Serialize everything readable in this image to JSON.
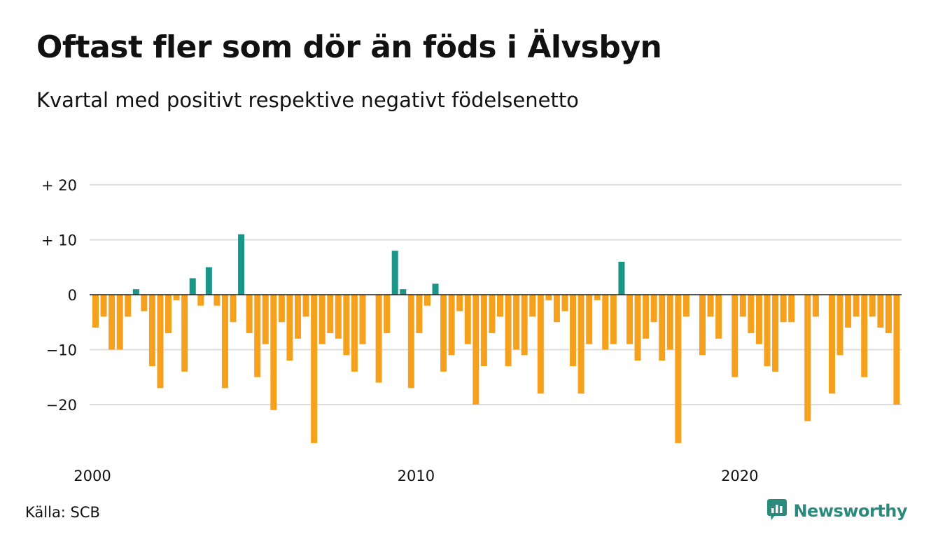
{
  "header": {
    "title": "Oftast fler som dör än föds i Älvsbyn",
    "subtitle": "Kvartal med positivt respektive negativt födelsenetto"
  },
  "footer": {
    "source": "Källa: SCB",
    "brand": "Newsworthy",
    "brand_icon": "newsworthy-logo-icon"
  },
  "colors": {
    "positive": "#1a9588",
    "negative": "#f5a11e",
    "grid": "#dddddd",
    "zero_line": "#222222",
    "brand": "#2a8b7d"
  },
  "chart_data": {
    "type": "bar",
    "title": "Oftast fler som dör än föds i Älvsbyn",
    "subtitle": "Kvartal med positivt respektive negativt födelsenetto",
    "xlabel": "",
    "ylabel": "",
    "ylim": [
      -28,
      22
    ],
    "yticks": [
      20,
      10,
      0,
      -10,
      -20
    ],
    "ytick_labels": [
      "+ 20",
      "+ 10",
      "0",
      "−10",
      "−20"
    ],
    "xticks": [
      "2000",
      "2010",
      "2020"
    ],
    "x_start": "2000 Q1",
    "grid": true,
    "categories": [
      "2000 Q1",
      "2000 Q2",
      "2000 Q3",
      "2000 Q4",
      "2001 Q1",
      "2001 Q2",
      "2001 Q3",
      "2001 Q4",
      "2002 Q1",
      "2002 Q2",
      "2002 Q3",
      "2002 Q4",
      "2003 Q1",
      "2003 Q2",
      "2003 Q3",
      "2003 Q4",
      "2004 Q1",
      "2004 Q2",
      "2004 Q3",
      "2004 Q4",
      "2005 Q1",
      "2005 Q2",
      "2005 Q3",
      "2005 Q4",
      "2006 Q1",
      "2006 Q2",
      "2006 Q3",
      "2006 Q4",
      "2007 Q1",
      "2007 Q2",
      "2007 Q3",
      "2007 Q4",
      "2008 Q1",
      "2008 Q2",
      "2008 Q3",
      "2008 Q4",
      "2009 Q1",
      "2009 Q2",
      "2009 Q3",
      "2009 Q4",
      "2010 Q1",
      "2010 Q2",
      "2010 Q3",
      "2010 Q4",
      "2011 Q1",
      "2011 Q2",
      "2011 Q3",
      "2011 Q4",
      "2012 Q1",
      "2012 Q2",
      "2012 Q3",
      "2012 Q4",
      "2013 Q1",
      "2013 Q2",
      "2013 Q3",
      "2013 Q4",
      "2014 Q1",
      "2014 Q2",
      "2014 Q3",
      "2014 Q4",
      "2015 Q1",
      "2015 Q2",
      "2015 Q3",
      "2015 Q4",
      "2016 Q1",
      "2016 Q2",
      "2016 Q3",
      "2016 Q4",
      "2017 Q1",
      "2017 Q2",
      "2017 Q3",
      "2017 Q4",
      "2018 Q1",
      "2018 Q2",
      "2018 Q3",
      "2018 Q4",
      "2019 Q1",
      "2019 Q2",
      "2019 Q3",
      "2019 Q4",
      "2020 Q1",
      "2020 Q2",
      "2020 Q3",
      "2020 Q4",
      "2021 Q1",
      "2021 Q2",
      "2021 Q3",
      "2021 Q4",
      "2022 Q1",
      "2022 Q2",
      "2022 Q3",
      "2022 Q4",
      "2023 Q1",
      "2023 Q2",
      "2023 Q3",
      "2023 Q4",
      "2024 Q1",
      "2024 Q2",
      "2024 Q3",
      "2024 Q4"
    ],
    "values": [
      -6,
      -4,
      -10,
      -10,
      -4,
      1,
      -3,
      -13,
      -17,
      -7,
      -1,
      -14,
      3,
      -2,
      5,
      -2,
      -17,
      -5,
      11,
      -7,
      -15,
      -9,
      -21,
      -5,
      -12,
      -8,
      -4,
      -27,
      -9,
      -7,
      -8,
      -11,
      -14,
      -9,
      0,
      -16,
      -7,
      8,
      1,
      -17,
      -7,
      -2,
      2,
      -14,
      -11,
      -3,
      -9,
      -20,
      -13,
      -7,
      -4,
      -13,
      -10,
      -11,
      -4,
      -18,
      -1,
      -5,
      -3,
      -13,
      -18,
      -9,
      -1,
      -10,
      -9,
      6,
      -9,
      -12,
      -8,
      -5,
      -12,
      -10,
      -27,
      -4,
      0,
      -11,
      -4,
      -8,
      0,
      -15,
      -4,
      -7,
      -9,
      -13,
      -14,
      -5,
      -5,
      0,
      -23,
      -4,
      0,
      -18,
      -11,
      -6,
      -4,
      -15,
      -4,
      -6,
      -7,
      -20
    ]
  }
}
